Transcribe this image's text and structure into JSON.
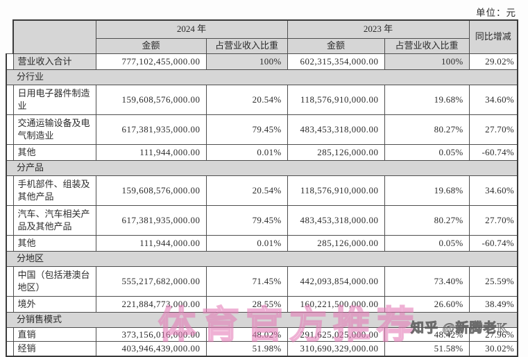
{
  "meta": {
    "unit_label": "单位：元"
  },
  "table": {
    "header": {
      "year_2024": "2024 年",
      "year_2023": "2023 年",
      "amount_2024": "金额",
      "ratio_2024": "占营业收入比重",
      "amount_2023": "金额",
      "ratio_2023": "占营业收入比重",
      "yoy": "同比增减"
    },
    "rows": [
      {
        "type": "data",
        "size": "s",
        "shaded": true,
        "label": "营业收入合计",
        "a2024": "777,102,455,000.00",
        "r2024": "100%",
        "a2023": "602,315,354,000.00",
        "r2023": "100%",
        "yoy": "29.02%"
      },
      {
        "type": "section",
        "label": "分行业"
      },
      {
        "type": "data",
        "size": "t",
        "label": "日用电子器件制造业",
        "a2024": "159,608,576,000.00",
        "r2024": "20.54%",
        "a2023": "118,576,910,000.00",
        "r2023": "19.68%",
        "yoy": "34.60%"
      },
      {
        "type": "data",
        "size": "t",
        "label": "交通运输设备及电气制造业",
        "a2024": "617,381,935,000.00",
        "r2024": "79.45%",
        "a2023": "483,453,318,000.00",
        "r2023": "80.27%",
        "yoy": "27.70%"
      },
      {
        "type": "data",
        "size": "s",
        "label": "其他",
        "a2024": "111,944,000.00",
        "r2024": "0.01%",
        "a2023": "285,126,000.00",
        "r2023": "0.05%",
        "yoy": "-60.74%"
      },
      {
        "type": "section",
        "label": "分产品"
      },
      {
        "type": "data",
        "size": "t",
        "label": "手机部件、组装及其他产品",
        "a2024": "159,608,576,000.00",
        "r2024": "20.54%",
        "a2023": "118,576,910,000.00",
        "r2023": "19.68%",
        "yoy": "34.60%"
      },
      {
        "type": "data",
        "size": "t",
        "label": "汽车、汽车相关产品及其他产品",
        "a2024": "617,381,935,000.00",
        "r2024": "79.45%",
        "a2023": "483,453,318,000.00",
        "r2023": "80.27%",
        "yoy": "27.70%"
      },
      {
        "type": "data",
        "size": "s",
        "label": "其他",
        "a2024": "111,944,000.00",
        "r2024": "0.01%",
        "a2023": "285,126,000.00",
        "r2023": "0.05%",
        "yoy": "-60.74%"
      },
      {
        "type": "section",
        "label": "分地区"
      },
      {
        "type": "data",
        "size": "t",
        "label": "中国（包括港澳台地区）",
        "a2024": "555,217,682,000.00",
        "r2024": "71.45%",
        "a2023": "442,093,854,000.00",
        "r2023": "73.40%",
        "yoy": "25.59%"
      },
      {
        "type": "data",
        "size": "s",
        "label": "境外",
        "a2024": "221,884,773,000.00",
        "r2024": "28.55%",
        "a2023": "160,221,500,000.00",
        "r2023": "26.60%",
        "yoy": "38.49%"
      },
      {
        "type": "section",
        "label": "分销售模式"
      },
      {
        "type": "data",
        "size": "xs",
        "label": "直销",
        "a2024": "373,156,016,000.00",
        "r2024": "48.02%",
        "a2023": "291,625,025,000.00",
        "r2023": "48.42%",
        "yoy": "27.96%"
      },
      {
        "type": "data",
        "size": "xs",
        "last": true,
        "label": "经销",
        "a2024": "403,946,439,000.00",
        "r2024": "51.98%",
        "a2023": "310,690,329,000.00",
        "r2023": "51.58%",
        "yoy": "30.02%"
      }
    ]
  },
  "watermarks": {
    "center": "体育官方推荐",
    "corner": "知乎 @新腾老K"
  }
}
